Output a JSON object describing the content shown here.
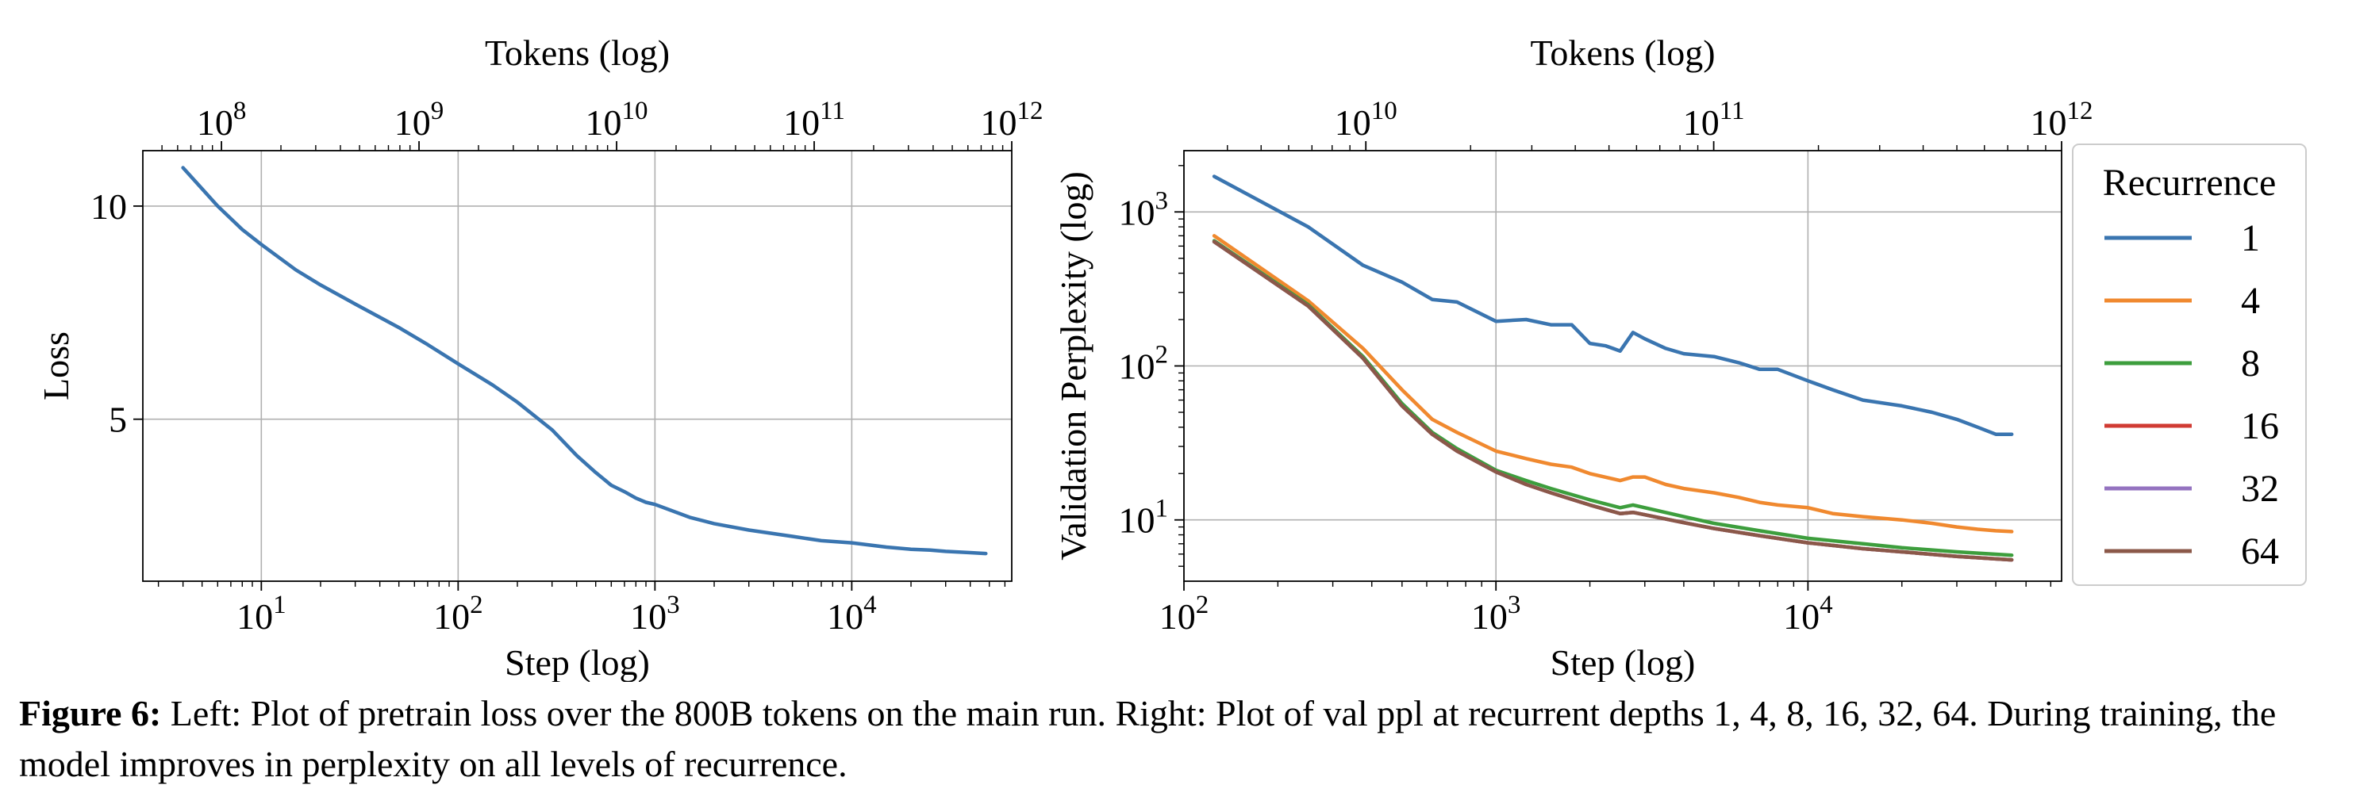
{
  "figure": {
    "caption_label": "Figure 6:",
    "caption_text": "Left: Plot of pretrain loss over the 800B tokens on the main run. Right: Plot of val ppl at recurrent depths 1, 4, 8, 16, 32, 64. During training, the model improves in perplexity on all levels of recurrence."
  },
  "colors": {
    "1": "#3a75b0",
    "4": "#f0892f",
    "8": "#3d9e3d",
    "16": "#d03b33",
    "32": "#9473c0",
    "64": "#8b5849"
  },
  "chart_data": [
    {
      "type": "line",
      "title": "",
      "xlabel": "Step (log)",
      "ylabel": "Loss",
      "top_xlabel": "Tokens (log)",
      "xscale": "log",
      "yscale": "linear",
      "xlim": [
        2.5,
        65000
      ],
      "ylim": [
        1.2,
        11.3
      ],
      "top_xlim": [
        40000000,
        1000000000000
      ],
      "xticks": [
        {
          "v": 10,
          "base": "10",
          "exp": "1"
        },
        {
          "v": 100,
          "base": "10",
          "exp": "2"
        },
        {
          "v": 1000,
          "base": "10",
          "exp": "3"
        },
        {
          "v": 10000,
          "base": "10",
          "exp": "4"
        }
      ],
      "yticks": [
        {
          "v": 5,
          "label": "5"
        },
        {
          "v": 10,
          "label": "10"
        }
      ],
      "top_xticks": [
        {
          "v": 100000000,
          "base": "10",
          "exp": "8"
        },
        {
          "v": 1000000000,
          "base": "10",
          "exp": "9"
        },
        {
          "v": 10000000000,
          "base": "10",
          "exp": "10"
        },
        {
          "v": 100000000000,
          "base": "10",
          "exp": "11"
        },
        {
          "v": 1000000000000,
          "base": "10",
          "exp": "12"
        }
      ],
      "grid": true,
      "series": [
        {
          "key": "1",
          "x": [
            4,
            6,
            8,
            10,
            15,
            20,
            30,
            50,
            70,
            100,
            150,
            200,
            300,
            400,
            500,
            600,
            700,
            800,
            900,
            1000,
            1500,
            2000,
            3000,
            5000,
            7000,
            10000,
            15000,
            20000,
            25000,
            30000,
            40000,
            48000
          ],
          "y": [
            10.9,
            10.0,
            9.45,
            9.1,
            8.5,
            8.15,
            7.7,
            7.15,
            6.75,
            6.3,
            5.8,
            5.4,
            4.75,
            4.15,
            3.75,
            3.45,
            3.3,
            3.15,
            3.05,
            3.0,
            2.7,
            2.55,
            2.4,
            2.25,
            2.15,
            2.1,
            2.0,
            1.95,
            1.93,
            1.9,
            1.87,
            1.85
          ]
        }
      ]
    },
    {
      "type": "line",
      "title": "",
      "xlabel": "Step (log)",
      "ylabel": "Validation Perplexity (log)",
      "top_xlabel": "Tokens (log)",
      "xscale": "log",
      "yscale": "log",
      "xlim": [
        100,
        65000
      ],
      "ylim": [
        4,
        2500
      ],
      "top_xlim": [
        3000000000,
        1000000000000
      ],
      "xticks": [
        {
          "v": 100,
          "base": "10",
          "exp": "2"
        },
        {
          "v": 1000,
          "base": "10",
          "exp": "3"
        },
        {
          "v": 10000,
          "base": "10",
          "exp": "4"
        }
      ],
      "yticks": [
        {
          "v": 10,
          "base": "10",
          "exp": "1"
        },
        {
          "v": 100,
          "base": "10",
          "exp": "2"
        },
        {
          "v": 1000,
          "base": "10",
          "exp": "3"
        }
      ],
      "top_xticks": [
        {
          "v": 10000000000,
          "base": "10",
          "exp": "10"
        },
        {
          "v": 100000000000,
          "base": "10",
          "exp": "11"
        },
        {
          "v": 1000000000000,
          "base": "10",
          "exp": "12"
        }
      ],
      "grid": true,
      "legend": {
        "title": "Recurrence",
        "position": "outside right"
      },
      "series": [
        {
          "name": "1",
          "key": "1",
          "x": [
            125,
            250,
            375,
            500,
            625,
            750,
            1000,
            1250,
            1500,
            1750,
            2000,
            2250,
            2500,
            2750,
            3000,
            3500,
            4000,
            5000,
            6000,
            7000,
            8000,
            10000,
            12000,
            15000,
            20000,
            25000,
            30000,
            35000,
            40000,
            45000
          ],
          "y": [
            1700,
            800,
            450,
            350,
            270,
            260,
            195,
            200,
            185,
            185,
            140,
            135,
            125,
            165,
            150,
            130,
            120,
            115,
            105,
            95,
            95,
            80,
            70,
            60,
            55,
            50,
            45,
            40,
            36,
            36
          ]
        },
        {
          "name": "4",
          "key": "4",
          "x": [
            125,
            250,
            375,
            500,
            625,
            750,
            1000,
            1250,
            1500,
            1750,
            2000,
            2500,
            2750,
            3000,
            3500,
            4000,
            5000,
            6000,
            7000,
            8000,
            10000,
            12000,
            15000,
            20000,
            25000,
            30000,
            35000,
            40000,
            45000
          ],
          "y": [
            700,
            265,
            130,
            70,
            45,
            37,
            28,
            25,
            23,
            22,
            20,
            18,
            19,
            19,
            17,
            16,
            15,
            14,
            13,
            12.5,
            12,
            11,
            10.5,
            10,
            9.5,
            9,
            8.7,
            8.5,
            8.4
          ]
        },
        {
          "name": "8",
          "key": "8",
          "x": [
            125,
            250,
            375,
            500,
            625,
            750,
            1000,
            1250,
            1500,
            2000,
            2500,
            2750,
            3000,
            4000,
            5000,
            7000,
            10000,
            15000,
            20000,
            30000,
            45000
          ],
          "y": [
            650,
            250,
            115,
            57,
            37,
            29,
            21,
            18,
            16,
            13.5,
            12,
            12.5,
            12,
            10.5,
            9.5,
            8.5,
            7.6,
            7,
            6.6,
            6.2,
            5.9
          ]
        },
        {
          "name": "16",
          "key": "16",
          "x": [
            125,
            250,
            375,
            500,
            625,
            750,
            1000,
            1250,
            1500,
            2000,
            2500,
            2750,
            3000,
            4000,
            5000,
            7000,
            10000,
            15000,
            20000,
            30000,
            45000
          ],
          "y": [
            640,
            245,
            112,
            55,
            36,
            28,
            20.5,
            17,
            15,
            12.5,
            11,
            11.2,
            10.8,
            9.6,
            8.8,
            7.9,
            7.1,
            6.5,
            6.2,
            5.8,
            5.5
          ]
        },
        {
          "name": "32",
          "key": "32",
          "x": [
            125,
            250,
            375,
            500,
            625,
            750,
            1000,
            1250,
            1500,
            2000,
            2500,
            2750,
            3000,
            4000,
            5000,
            7000,
            10000,
            15000,
            20000,
            30000,
            45000
          ],
          "y": [
            640,
            245,
            112,
            55,
            36,
            28,
            20.5,
            17,
            15,
            12.5,
            11,
            11.2,
            10.8,
            9.6,
            8.8,
            7.9,
            7.1,
            6.5,
            6.2,
            5.8,
            5.5
          ]
        },
        {
          "name": "64",
          "key": "64",
          "x": [
            125,
            250,
            375,
            500,
            625,
            750,
            1000,
            1250,
            1500,
            2000,
            2500,
            2750,
            3000,
            4000,
            5000,
            7000,
            10000,
            15000,
            20000,
            30000,
            45000
          ],
          "y": [
            640,
            245,
            112,
            55,
            36,
            28,
            20.5,
            17,
            15,
            12.5,
            11,
            11.2,
            10.8,
            9.6,
            8.8,
            7.9,
            7.1,
            6.5,
            6.2,
            5.8,
            5.5
          ]
        }
      ]
    }
  ]
}
